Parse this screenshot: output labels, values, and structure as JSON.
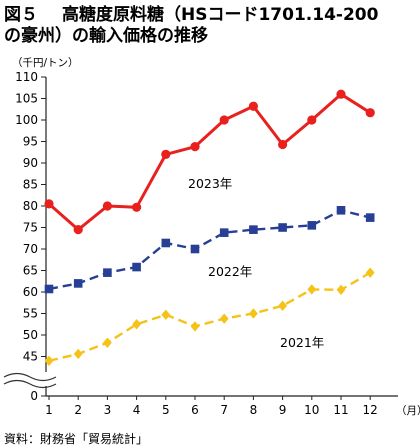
{
  "figure_label": "図５",
  "title_line1": "高糖度原料糖（HSコード1701.14-200",
  "title_line2": "の豪州）の輸入価格の推移",
  "source": "資料：財務省「貿易統計」",
  "chart_data": {
    "type": "line",
    "ylabel": "（千円/トン）",
    "xlabel": "（月）",
    "categories": [
      "1",
      "2",
      "3",
      "4",
      "5",
      "6",
      "7",
      "8",
      "9",
      "10",
      "11",
      "12"
    ],
    "y_ticks": [
      0,
      45,
      50,
      55,
      60,
      65,
      70,
      75,
      80,
      85,
      90,
      95,
      100,
      105,
      110
    ],
    "ylim": [
      40,
      110
    ],
    "axis_break": true,
    "grid": false,
    "series": [
      {
        "name": "2023年",
        "color": "#e8201e",
        "marker": "circle",
        "line": "solid",
        "values": [
          80.5,
          74.5,
          80.0,
          79.7,
          92.0,
          93.8,
          100.0,
          103.2,
          94.3,
          100.0,
          106.0,
          101.7
        ]
      },
      {
        "name": "2022年",
        "color": "#283f96",
        "marker": "square",
        "line": "dashed",
        "values": [
          60.7,
          62.0,
          64.5,
          65.8,
          71.4,
          70.0,
          73.8,
          74.5,
          75.0,
          75.5,
          79.0,
          77.3
        ]
      },
      {
        "name": "2021年",
        "color": "#f5c318",
        "marker": "diamond",
        "line": "dashed",
        "values": [
          44.0,
          45.6,
          48.2,
          52.5,
          54.7,
          52.0,
          53.8,
          55.0,
          56.8,
          60.6,
          60.5,
          64.5
        ]
      }
    ]
  }
}
